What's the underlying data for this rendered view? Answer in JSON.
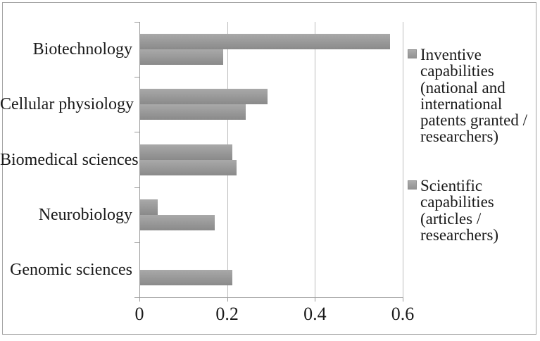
{
  "figure": {
    "background": "#ffffff",
    "border_color": "#a3a3a3"
  },
  "chart_data": {
    "type": "bar",
    "orientation": "horizontal",
    "title": "",
    "xlabel": "",
    "ylabel": "",
    "categories": [
      "Biotechnology",
      "Cellular physiology",
      "Biomedical sciences",
      "Neurobiology",
      "Genomic sciences"
    ],
    "series": [
      {
        "name": "Inventive capabilities (national and international patents granted / researchers)",
        "position_in_pair": "top",
        "values": [
          0.57,
          0.29,
          0.21,
          0.04,
          0
        ]
      },
      {
        "name": "Scientific capabilities (articles / researchers)",
        "position_in_pair": "bottom",
        "values": [
          0.19,
          0.24,
          0.22,
          0.17,
          0.21
        ]
      }
    ],
    "x_axis": {
      "range": [
        0,
        0.6
      ],
      "ticks": [
        0,
        0.2,
        0.4,
        0.6
      ],
      "tick_labels": [
        "0",
        "0.2",
        "0.4",
        "0.6"
      ],
      "gridlines": true
    },
    "legend": {
      "position": "right",
      "entries": [
        "Inventive capabilities (national and international patents granted / researchers)",
        "Scientific capabilities (articles / researchers)"
      ]
    },
    "colors": {
      "bar_gradient_top": "#a9a9a9",
      "bar_gradient_bottom": "#8a8a8a",
      "axis_line": "#9a9a9a",
      "gridline": "#bcbcbc",
      "text": "#1a1a1a",
      "legend_marker": "#9f9f9f"
    }
  }
}
